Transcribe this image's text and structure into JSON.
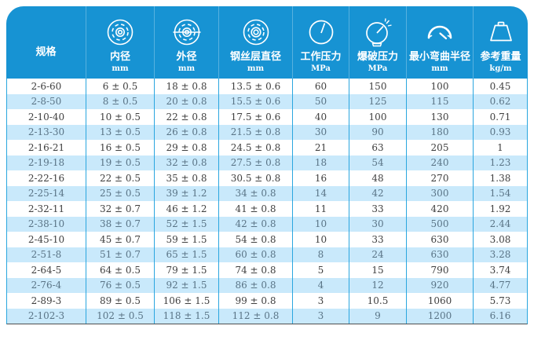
{
  "colors": {
    "header_bg": "#1793d3",
    "row_alt_bg": "#c9e9fb",
    "grid_line": "#2aa6df",
    "header_text": "#ffffff",
    "cell_text": "#3f3f3f"
  },
  "header": {
    "columns": [
      {
        "label": "规格",
        "unit": "",
        "icon": ""
      },
      {
        "label": "内径",
        "unit": "mm",
        "icon": "inner-diameter-icon"
      },
      {
        "label": "外径",
        "unit": "mm",
        "icon": "outer-diameter-icon"
      },
      {
        "label": "钢丝层直径",
        "unit": "mm",
        "icon": "wire-layer-diameter-icon"
      },
      {
        "label": "工作压力",
        "unit": "MPa",
        "icon": "working-pressure-gauge-icon"
      },
      {
        "label": "爆破压力",
        "unit": "MPa",
        "icon": "burst-pressure-gauge-icon"
      },
      {
        "label": "最小弯曲半径",
        "unit": "mm",
        "icon": "bend-radius-icon"
      },
      {
        "label": "参考重量",
        "unit": "kg/m",
        "icon": "weight-icon"
      }
    ]
  },
  "table": {
    "rows": [
      [
        "2-6-60",
        "6 ± 0.5",
        "18 ± 0.8",
        "13.5 ± 0.6",
        "60",
        "150",
        "100",
        "0.45"
      ],
      [
        "2-8-50",
        "8 ± 0.5",
        "20 ± 0.8",
        "15.5 ± 0.6",
        "50",
        "125",
        "115",
        "0.62"
      ],
      [
        "2-10-40",
        "10 ± 0.5",
        "22 ± 0.8",
        "17.5 ± 0.6",
        "40",
        "100",
        "130",
        "0.71"
      ],
      [
        "2-13-30",
        "13 ± 0.5",
        "26 ± 0.8",
        "21.5 ± 0.8",
        "30",
        "90",
        "180",
        "0.93"
      ],
      [
        "2-16-21",
        "16 ± 0.5",
        "29 ± 0.8",
        "24.5 ± 0.8",
        "21",
        "63",
        "205",
        "1"
      ],
      [
        "2-19-18",
        "19 ± 0.5",
        "32 ± 0.8",
        "27.5 ± 0.8",
        "18",
        "54",
        "240",
        "1.23"
      ],
      [
        "2-22-16",
        "22 ± 0.5",
        "35 ± 0.8",
        "30.5 ± 0.8",
        "16",
        "48",
        "270",
        "1.38"
      ],
      [
        "2-25-14",
        "25 ± 0.5",
        "39 ± 1.2",
        "34 ± 0.8",
        "14",
        "42",
        "300",
        "1.54"
      ],
      [
        "2-32-11",
        "32 ± 0.7",
        "46 ± 1.2",
        "41 ± 0.8",
        "11",
        "33",
        "420",
        "1.92"
      ],
      [
        "2-38-10",
        "38 ± 0.7",
        "52 ± 1.5",
        "42 ± 0.8",
        "10",
        "30",
        "500",
        "2.44"
      ],
      [
        "2-45-10",
        "45 ± 0.7",
        "59 ± 1.5",
        "54 ± 0.8",
        "10",
        "33",
        "630",
        "3.08"
      ],
      [
        "2-51-8",
        "51 ± 0.7",
        "65 ± 1.5",
        "60 ± 0.8",
        "8",
        "24",
        "630",
        "3.28"
      ],
      [
        "2-64-5",
        "64 ± 0.5",
        "79 ± 1.5",
        "74 ± 0.8",
        "5",
        "15",
        "790",
        "3.74"
      ],
      [
        "2-76-4",
        "76 ± 0.5",
        "92 ± 1.5",
        "86 ± 0.8",
        "4",
        "12",
        "920",
        "4.77"
      ],
      [
        "2-89-3",
        "89 ± 0.5",
        "106 ± 1.5",
        "99 ± 0.8",
        "3",
        "10.5",
        "1060",
        "5.73"
      ],
      [
        "2-102-3",
        "102 ± 0.5",
        "118 ± 1.5",
        "112 ± 0.8",
        "3",
        "9",
        "1200",
        "6.16"
      ]
    ]
  }
}
